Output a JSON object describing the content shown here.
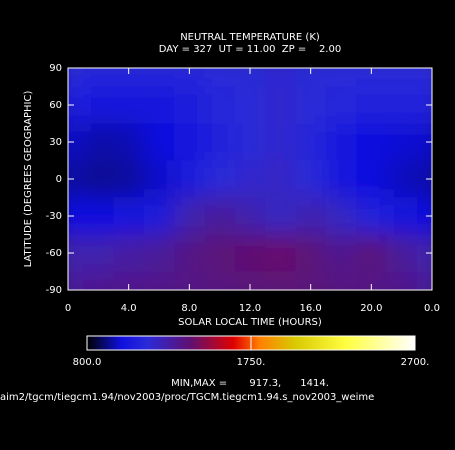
{
  "chart_data": {
    "type": "heatmap",
    "title": "NEUTRAL TEMPERATURE (K)",
    "subtitle": "DAY = 327  UT = 11.00  ZP =    2.00",
    "xlabel": "SOLAR LOCAL TIME (HOURS)",
    "ylabel": "LATITUDE (DEGREES GEOGRAPHIC)",
    "x": [
      0,
      2,
      4,
      6,
      8,
      10,
      12,
      14,
      16,
      18,
      20,
      22,
      24
    ],
    "y": [
      90,
      60,
      30,
      0,
      -30,
      -60,
      -90
    ],
    "z": [
      [
        1150,
        1140,
        1130,
        1130,
        1140,
        1150,
        1160,
        1170,
        1160,
        1150,
        1150,
        1150,
        1150
      ],
      [
        1100,
        1050,
        1030,
        1050,
        1080,
        1120,
        1150,
        1180,
        1150,
        1120,
        1100,
        1100,
        1100
      ],
      [
        980,
        950,
        960,
        1000,
        1050,
        1100,
        1150,
        1180,
        1120,
        1050,
        1000,
        990,
        980
      ],
      [
        950,
        930,
        940,
        980,
        1080,
        1150,
        1180,
        1200,
        1150,
        1050,
        1000,
        970,
        950
      ],
      [
        1000,
        1000,
        1020,
        1080,
        1250,
        1300,
        1250,
        1200,
        1250,
        1200,
        1100,
        1050,
        1000
      ],
      [
        1250,
        1250,
        1280,
        1300,
        1350,
        1380,
        1400,
        1414,
        1380,
        1320,
        1380,
        1300,
        1250
      ],
      [
        1300,
        1320,
        1330,
        1340,
        1350,
        1360,
        1370,
        1380,
        1370,
        1360,
        1350,
        1330,
        1300
      ]
    ],
    "xlim": [
      0,
      24
    ],
    "ylim": [
      -90,
      90
    ],
    "xticks": [
      0,
      {
        "value": 4,
        "label": "4.0"
      },
      {
        "value": 8,
        "label": "8.0"
      },
      {
        "value": 12,
        "label": "12.0"
      },
      {
        "value": 16,
        "label": "16.0"
      },
      {
        "value": 20,
        "label": "20.0"
      },
      {
        "value": 24,
        "label": "0.0"
      }
    ],
    "yticks": [
      90,
      60,
      30,
      0,
      -30,
      -60,
      -90
    ],
    "colormap": [
      {
        "value": 800,
        "color": "#000000"
      },
      {
        "value": 1000,
        "color": "#1010e0"
      },
      {
        "value": 1150,
        "color": "#2a2ad8"
      },
      {
        "value": 1400,
        "color": "#601070"
      },
      {
        "value": 1650,
        "color": "#e00000"
      },
      {
        "value": 1800,
        "color": "#ff8000"
      },
      {
        "value": 2000,
        "color": "#d8c800"
      },
      {
        "value": 2300,
        "color": "#ffff40"
      },
      {
        "value": 2700,
        "color": "#ffffff"
      }
    ],
    "colorbar_ticks": [
      {
        "value": 800,
        "label": "800.0"
      },
      {
        "value": 1750,
        "label": "1750."
      },
      {
        "value": 2700,
        "label": "2700."
      }
    ],
    "footer": "MIN,MAX =       917.3,      1414.",
    "file_path": "aim2/tgcm/tiegcm1.94/nov2003/proc/TGCM.tiegcm1.94.s_nov2003_weime"
  }
}
